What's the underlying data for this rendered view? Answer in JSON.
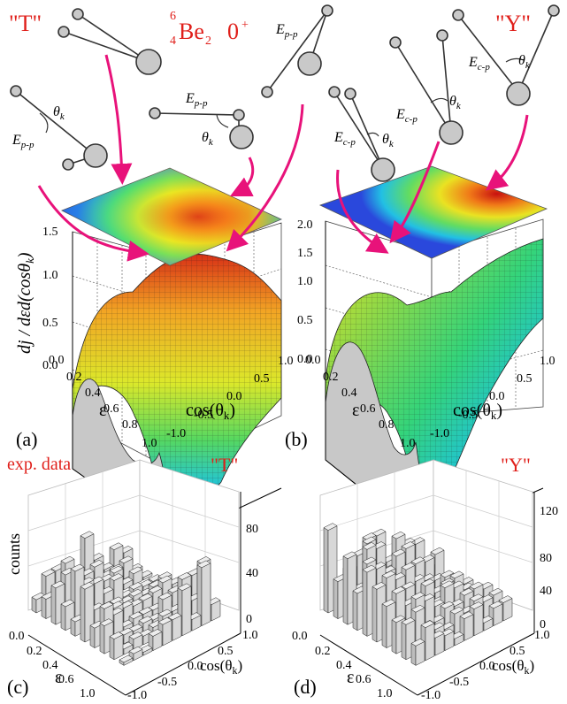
{
  "nucleus": {
    "mass": "6",
    "charge": "4",
    "symbol": "Be",
    "sub": "2",
    "state": "0",
    "parity": "+"
  },
  "configs": {
    "t": "\"T\"",
    "y": "\"Y\""
  },
  "energy": {
    "E": "E",
    "pp": "p-p",
    "cp": "c-p"
  },
  "theta": {
    "sym": "θ",
    "sub": "k"
  },
  "axes": {
    "z3d": "dj / dεd(cosθ",
    "z3d_end": ")",
    "eps": "ε",
    "cos": "cos",
    "cos_arg": "(θ",
    "cos_end": ")",
    "counts": "counts"
  },
  "ticks": {
    "a_z": [
      "0.0",
      "0.5",
      "1.0",
      "1.5"
    ],
    "b_z": [
      "0.0",
      "0.5",
      "1.0",
      "1.5",
      "2.0"
    ],
    "eps": [
      "0.0",
      "0.2",
      "0.4",
      "0.6",
      "0.8",
      "1.0"
    ],
    "eps_c": [
      "0.0",
      "0.2",
      "0.4",
      "0.6",
      "0.8",
      "1.0"
    ],
    "cos": [
      "1.0",
      "0.5",
      "0.0",
      "-0.5",
      "-1.0"
    ],
    "c_counts": [
      "0",
      "40",
      "80"
    ],
    "d_counts": [
      "0",
      "40",
      "80",
      "120"
    ]
  },
  "labels": {
    "a": "(a)",
    "b": "(b)",
    "c": "(c)",
    "d": "(d)",
    "exp": "exp. data"
  },
  "colors": {
    "red": "#e0201b",
    "arrow": "#e8127a",
    "gray": "#c8c8c8"
  }
}
